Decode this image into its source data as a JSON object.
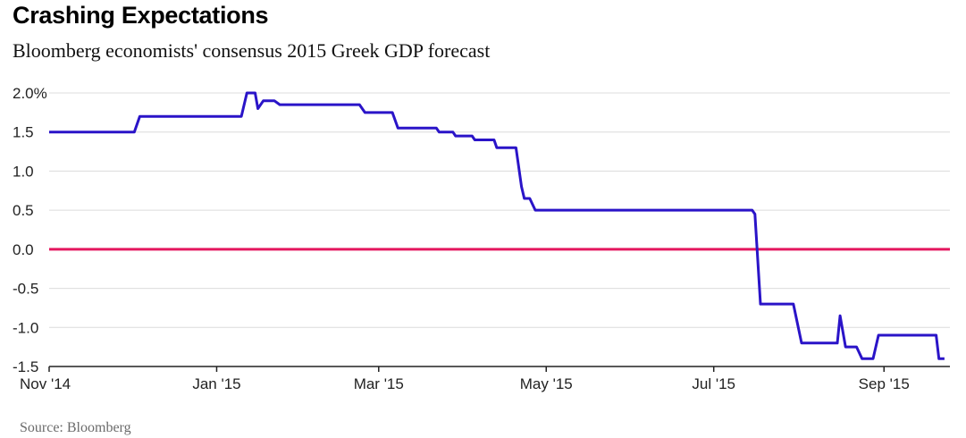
{
  "title": "Crashing Expectations",
  "subtitle": "Bloomberg economists' consensus 2015 Greek GDP forecast",
  "source": "Source: Bloomberg",
  "colors": {
    "series": "#2a14c8",
    "zero_line": "#e4175f",
    "grid": "#dcdcdc",
    "axis": "#222222"
  },
  "chart_data": {
    "type": "line",
    "title": "Crashing Expectations",
    "subtitle": "Bloomberg economists' consensus 2015 Greek GDP forecast",
    "xlabel": "",
    "ylabel": "",
    "xlim": [
      "2014-11-01",
      "2015-09-25"
    ],
    "ylim": [
      -1.5,
      2.0
    ],
    "grid": true,
    "yticks": [
      2.0,
      1.5,
      1.0,
      0.5,
      0.0,
      -0.5,
      -1.0,
      -1.5
    ],
    "ytick_labels": [
      "2.0%",
      "1.5",
      "1.0",
      "0.5",
      "0.0",
      "-0.5",
      "-1.0",
      "-1.5"
    ],
    "xticks": [
      "2014-11-01",
      "2015-01-01",
      "2015-03-01",
      "2015-05-01",
      "2015-07-01",
      "2015-09-01"
    ],
    "xtick_labels": [
      "Nov '14",
      "Jan '15",
      "Mar '15",
      "May '15",
      "Jul '15",
      "Sep '15"
    ],
    "reference_line": {
      "y": 0.0
    },
    "series": [
      {
        "points": [
          [
            "2014-11-01",
            1.5
          ],
          [
            "2014-12-02",
            1.5
          ],
          [
            "2014-12-04",
            1.7
          ],
          [
            "2015-01-10",
            1.7
          ],
          [
            "2015-01-12",
            2.0
          ],
          [
            "2015-01-15",
            2.0
          ],
          [
            "2015-01-16",
            1.8
          ],
          [
            "2015-01-18",
            1.9
          ],
          [
            "2015-01-22",
            1.9
          ],
          [
            "2015-01-24",
            1.85
          ],
          [
            "2015-02-22",
            1.85
          ],
          [
            "2015-02-24",
            1.75
          ],
          [
            "2015-03-06",
            1.75
          ],
          [
            "2015-03-08",
            1.55
          ],
          [
            "2015-03-22",
            1.55
          ],
          [
            "2015-03-23",
            1.5
          ],
          [
            "2015-03-28",
            1.5
          ],
          [
            "2015-03-29",
            1.45
          ],
          [
            "2015-04-04",
            1.45
          ],
          [
            "2015-04-05",
            1.4
          ],
          [
            "2015-04-12",
            1.4
          ],
          [
            "2015-04-13",
            1.3
          ],
          [
            "2015-04-20",
            1.3
          ],
          [
            "2015-04-22",
            0.8
          ],
          [
            "2015-04-23",
            0.65
          ],
          [
            "2015-04-25",
            0.65
          ],
          [
            "2015-04-27",
            0.5
          ],
          [
            "2015-07-15",
            0.5
          ],
          [
            "2015-07-16",
            0.45
          ],
          [
            "2015-07-18",
            -0.7
          ],
          [
            "2015-07-30",
            -0.7
          ],
          [
            "2015-08-02",
            -1.2
          ],
          [
            "2015-08-15",
            -1.2
          ],
          [
            "2015-08-16",
            -0.85
          ],
          [
            "2015-08-18",
            -1.25
          ],
          [
            "2015-08-22",
            -1.25
          ],
          [
            "2015-08-24",
            -1.4
          ],
          [
            "2015-08-28",
            -1.4
          ],
          [
            "2015-08-30",
            -1.1
          ],
          [
            "2015-09-20",
            -1.1
          ],
          [
            "2015-09-21",
            -1.4
          ],
          [
            "2015-09-23",
            -1.4
          ]
        ]
      }
    ]
  }
}
